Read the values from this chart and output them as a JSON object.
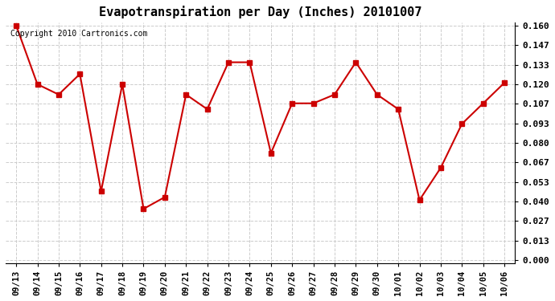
{
  "title": "Evapotranspiration per Day (Inches) 20101007",
  "copyright_text": "Copyright 2010 Cartronics.com",
  "x_labels": [
    "09/13",
    "09/14",
    "09/15",
    "09/16",
    "09/17",
    "09/18",
    "09/19",
    "09/20",
    "09/21",
    "09/22",
    "09/23",
    "09/24",
    "09/25",
    "09/26",
    "09/27",
    "09/28",
    "09/29",
    "09/30",
    "10/01",
    "10/02",
    "10/03",
    "10/04",
    "10/05",
    "10/06"
  ],
  "y_values": [
    0.16,
    0.12,
    0.113,
    0.127,
    0.047,
    0.12,
    0.035,
    0.043,
    0.113,
    0.103,
    0.135,
    0.135,
    0.073,
    0.107,
    0.107,
    0.113,
    0.135,
    0.113,
    0.103,
    0.041,
    0.063,
    0.093,
    0.107,
    0.121
  ],
  "line_color": "#cc0000",
  "marker_color": "#cc0000",
  "bg_color": "#ffffff",
  "plot_bg_color": "#ffffff",
  "grid_color": "#cccccc",
  "y_ticks": [
    0.0,
    0.013,
    0.027,
    0.04,
    0.053,
    0.067,
    0.08,
    0.093,
    0.107,
    0.12,
    0.133,
    0.147,
    0.16
  ],
  "ylim": [
    0.0,
    0.16
  ]
}
